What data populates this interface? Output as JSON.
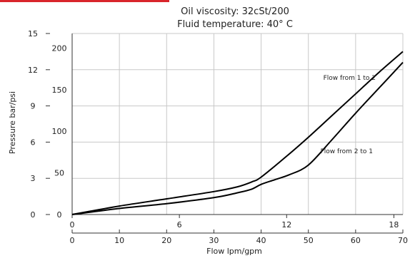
{
  "colors": {
    "accent": "#d9252b",
    "grid": "#c8c8c8",
    "curve": "#000000",
    "axis": "#333333"
  },
  "chart_data": {
    "type": "line",
    "title": "Oil viscosity: 32cSt/200",
    "subtitle": "Fluid temperature: 40° C",
    "xlabel": "Flow   lpm/gpm",
    "ylabel": "Pressure   bar/psi",
    "x_primary": {
      "unit": "lpm",
      "range": [
        0,
        70
      ],
      "ticks": [
        "0",
        "10",
        "20",
        "30",
        "40",
        "50",
        "60",
        "70"
      ]
    },
    "x_secondary": {
      "unit": "gpm",
      "ticks": [
        {
          "label": "0",
          "lpm": 0
        },
        {
          "label": "6",
          "lpm": 22.7
        },
        {
          "label": "12",
          "lpm": 45.4
        },
        {
          "label": "18",
          "lpm": 68.1
        }
      ]
    },
    "y_left": {
      "unit": "bar",
      "range": [
        0,
        15
      ],
      "ticks": [
        "0",
        "3",
        "6",
        "9",
        "12",
        "15"
      ]
    },
    "y_right": {
      "unit": "psi",
      "ticks": [
        {
          "label": "0",
          "bar": 0
        },
        {
          "label": "50",
          "bar": 3.45
        },
        {
          "label": "100",
          "bar": 6.9
        },
        {
          "label": "150",
          "bar": 10.34
        },
        {
          "label": "200",
          "bar": 13.79
        }
      ]
    },
    "grid": true,
    "series": [
      {
        "name": "Flow from 1 to 2",
        "x": [
          0,
          10,
          20,
          30,
          35,
          38,
          40,
          45,
          50,
          55,
          60,
          65,
          70
        ],
        "y": [
          0,
          0.7,
          1.3,
          1.9,
          2.3,
          2.7,
          3.1,
          4.7,
          6.4,
          8.2,
          10.0,
          11.8,
          13.5
        ]
      },
      {
        "name": "Flow from 2 to 1",
        "x": [
          0,
          10,
          20,
          30,
          35,
          38,
          40,
          43,
          46,
          50,
          55,
          60,
          65,
          70
        ],
        "y": [
          0,
          0.5,
          0.9,
          1.4,
          1.8,
          2.1,
          2.5,
          2.9,
          3.3,
          4.1,
          6.2,
          8.4,
          10.5,
          12.6
        ]
      }
    ]
  }
}
